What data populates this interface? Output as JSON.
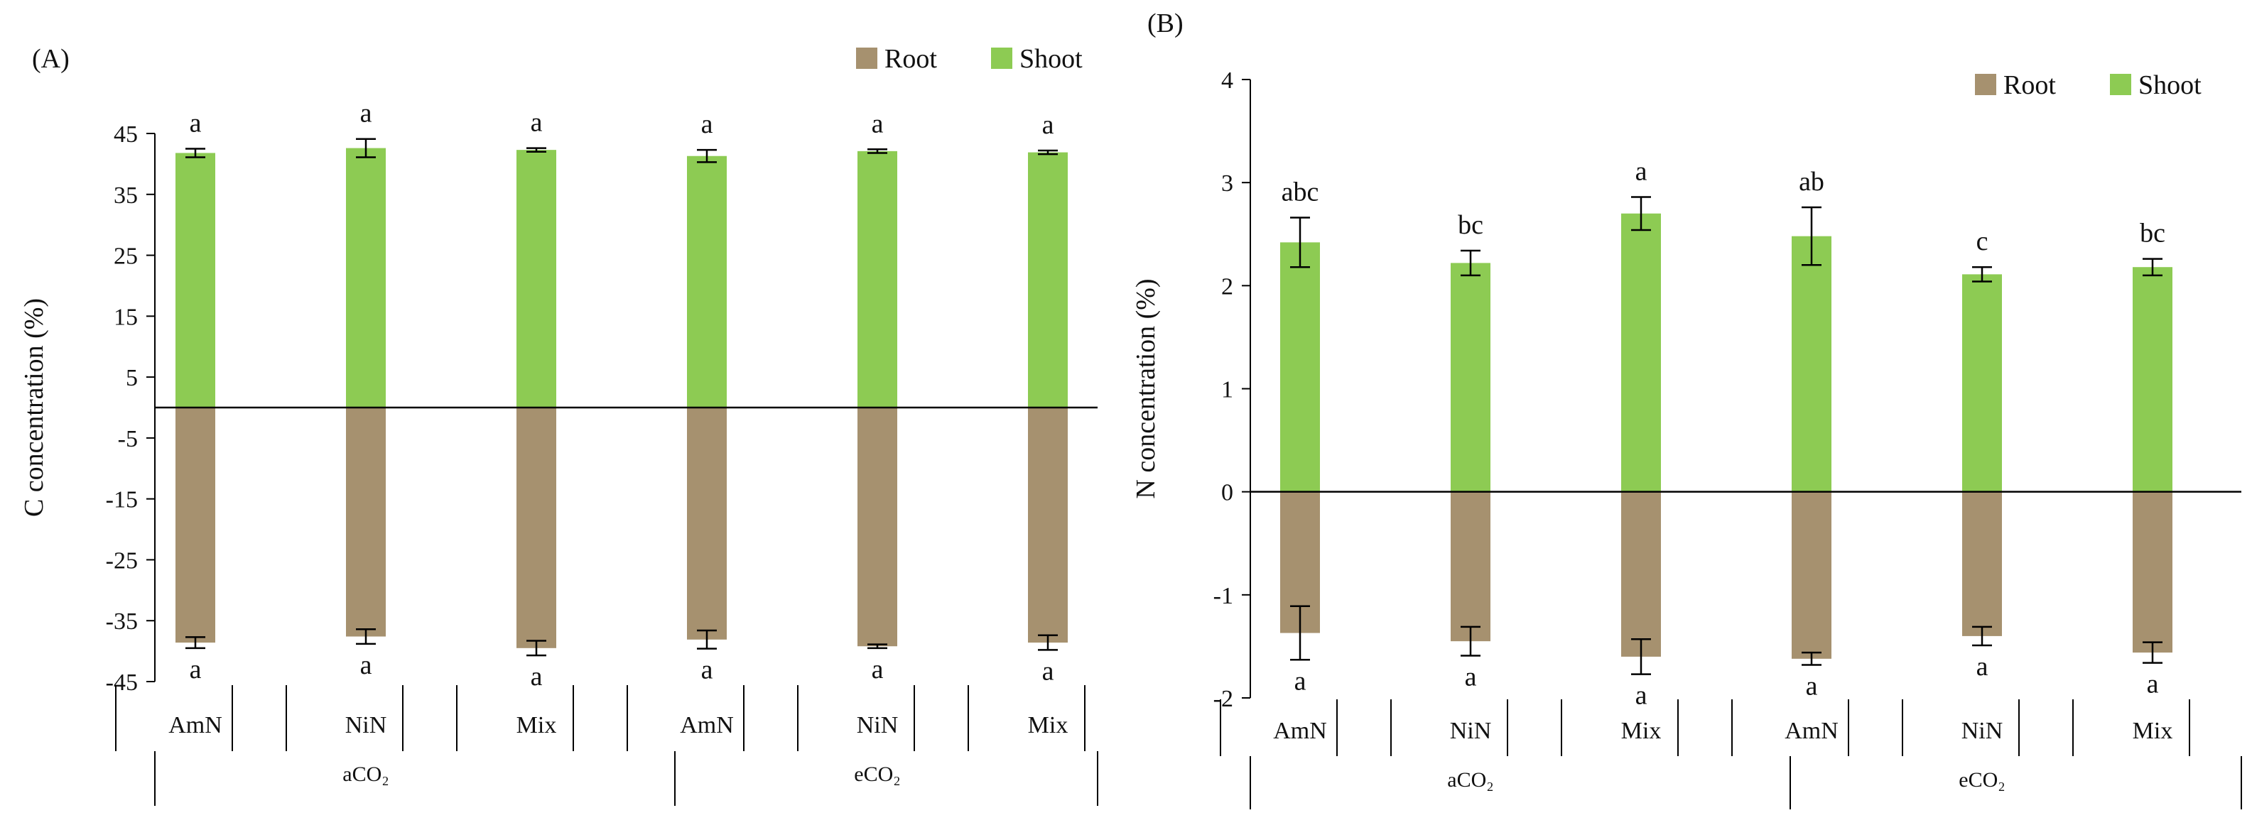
{
  "colors": {
    "root": "#A6916F",
    "shoot": "#8DCB53",
    "axis": "#000000"
  },
  "chart_data": [
    {
      "type": "bar",
      "panel_label": "(A)",
      "ylabel": "C concentration (%)",
      "ylim": [
        -45,
        45
      ],
      "yticks": [
        45,
        35,
        25,
        15,
        5,
        -5,
        -15,
        -25,
        -35,
        -45
      ],
      "legend": [
        "Root",
        "Shoot"
      ],
      "legend_position": "top-right",
      "categories": [
        "AmN",
        "NiN",
        "Mix",
        "AmN",
        "NiN",
        "Mix"
      ],
      "groups": [
        "aCO₂",
        "eCO₂"
      ],
      "series": [
        {
          "name": "Shoot",
          "values": [
            41.8,
            42.6,
            42.3,
            41.3,
            42.1,
            41.9
          ],
          "errors": [
            0.7,
            1.5,
            0.3,
            1.0,
            0.3,
            0.3
          ],
          "letters": [
            "a",
            "a",
            "a",
            "a",
            "a",
            "a"
          ]
        },
        {
          "name": "Root",
          "values": [
            -38.6,
            -37.6,
            -39.5,
            -38.1,
            -39.2,
            -38.6
          ],
          "errors": [
            0.9,
            1.2,
            1.2,
            1.5,
            0.3,
            1.2
          ],
          "letters": [
            "a",
            "a",
            "a",
            "a",
            "a",
            "a"
          ]
        }
      ]
    },
    {
      "type": "bar",
      "panel_label": "(B)",
      "ylabel": "N concentration (%)",
      "ylim": [
        -2,
        4
      ],
      "yticks": [
        4,
        3,
        2,
        1,
        0,
        -1,
        -2
      ],
      "legend": [
        "Root",
        "Shoot"
      ],
      "legend_position": "top-right",
      "categories": [
        "AmN",
        "NiN",
        "Mix",
        "AmN",
        "NiN",
        "Mix"
      ],
      "groups": [
        "aCO₂",
        "eCO₂"
      ],
      "series": [
        {
          "name": "Shoot",
          "values": [
            2.42,
            2.22,
            2.7,
            2.48,
            2.11,
            2.18
          ],
          "errors": [
            0.24,
            0.12,
            0.16,
            0.28,
            0.07,
            0.08
          ],
          "letters": [
            "abc",
            "bc",
            "a",
            "ab",
            "c",
            "bc"
          ]
        },
        {
          "name": "Root",
          "values": [
            -1.37,
            -1.45,
            -1.6,
            -1.62,
            -1.4,
            -1.56
          ],
          "errors": [
            0.26,
            0.14,
            0.17,
            0.06,
            0.09,
            0.1
          ],
          "letters": [
            "a",
            "a",
            "a",
            "a",
            "a",
            "a"
          ]
        }
      ]
    }
  ]
}
